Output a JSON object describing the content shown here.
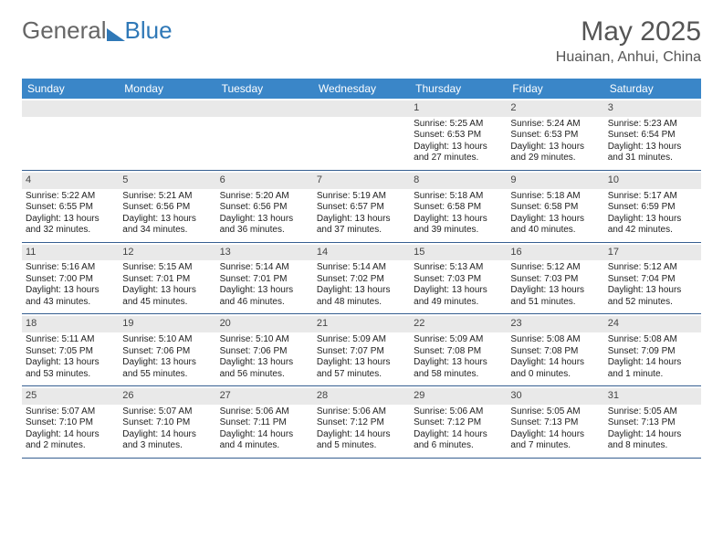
{
  "logo": {
    "word1": "General",
    "word2": "Blue"
  },
  "title": {
    "month": "May 2025",
    "location": "Huainan, Anhui, China"
  },
  "colors": {
    "header_bg": "#3a86c8",
    "header_text": "#ffffff",
    "accent": "#2f78b7",
    "daynum_bg": "#e9e9e9",
    "week_divider": "#365f91",
    "text": "#222222",
    "title_text": "#555555"
  },
  "calendar": {
    "days_of_week": [
      "Sunday",
      "Monday",
      "Tuesday",
      "Wednesday",
      "Thursday",
      "Friday",
      "Saturday"
    ],
    "weeks": [
      [
        {
          "n": "",
          "empty": true
        },
        {
          "n": "",
          "empty": true
        },
        {
          "n": "",
          "empty": true
        },
        {
          "n": "",
          "empty": true
        },
        {
          "n": "1",
          "sunrise": "5:25 AM",
          "sunset": "6:53 PM",
          "daylight": "13 hours and 27 minutes."
        },
        {
          "n": "2",
          "sunrise": "5:24 AM",
          "sunset": "6:53 PM",
          "daylight": "13 hours and 29 minutes."
        },
        {
          "n": "3",
          "sunrise": "5:23 AM",
          "sunset": "6:54 PM",
          "daylight": "13 hours and 31 minutes."
        }
      ],
      [
        {
          "n": "4",
          "sunrise": "5:22 AM",
          "sunset": "6:55 PM",
          "daylight": "13 hours and 32 minutes."
        },
        {
          "n": "5",
          "sunrise": "5:21 AM",
          "sunset": "6:56 PM",
          "daylight": "13 hours and 34 minutes."
        },
        {
          "n": "6",
          "sunrise": "5:20 AM",
          "sunset": "6:56 PM",
          "daylight": "13 hours and 36 minutes."
        },
        {
          "n": "7",
          "sunrise": "5:19 AM",
          "sunset": "6:57 PM",
          "daylight": "13 hours and 37 minutes."
        },
        {
          "n": "8",
          "sunrise": "5:18 AM",
          "sunset": "6:58 PM",
          "daylight": "13 hours and 39 minutes."
        },
        {
          "n": "9",
          "sunrise": "5:18 AM",
          "sunset": "6:58 PM",
          "daylight": "13 hours and 40 minutes."
        },
        {
          "n": "10",
          "sunrise": "5:17 AM",
          "sunset": "6:59 PM",
          "daylight": "13 hours and 42 minutes."
        }
      ],
      [
        {
          "n": "11",
          "sunrise": "5:16 AM",
          "sunset": "7:00 PM",
          "daylight": "13 hours and 43 minutes."
        },
        {
          "n": "12",
          "sunrise": "5:15 AM",
          "sunset": "7:01 PM",
          "daylight": "13 hours and 45 minutes."
        },
        {
          "n": "13",
          "sunrise": "5:14 AM",
          "sunset": "7:01 PM",
          "daylight": "13 hours and 46 minutes."
        },
        {
          "n": "14",
          "sunrise": "5:14 AM",
          "sunset": "7:02 PM",
          "daylight": "13 hours and 48 minutes."
        },
        {
          "n": "15",
          "sunrise": "5:13 AM",
          "sunset": "7:03 PM",
          "daylight": "13 hours and 49 minutes."
        },
        {
          "n": "16",
          "sunrise": "5:12 AM",
          "sunset": "7:03 PM",
          "daylight": "13 hours and 51 minutes."
        },
        {
          "n": "17",
          "sunrise": "5:12 AM",
          "sunset": "7:04 PM",
          "daylight": "13 hours and 52 minutes."
        }
      ],
      [
        {
          "n": "18",
          "sunrise": "5:11 AM",
          "sunset": "7:05 PM",
          "daylight": "13 hours and 53 minutes."
        },
        {
          "n": "19",
          "sunrise": "5:10 AM",
          "sunset": "7:06 PM",
          "daylight": "13 hours and 55 minutes."
        },
        {
          "n": "20",
          "sunrise": "5:10 AM",
          "sunset": "7:06 PM",
          "daylight": "13 hours and 56 minutes."
        },
        {
          "n": "21",
          "sunrise": "5:09 AM",
          "sunset": "7:07 PM",
          "daylight": "13 hours and 57 minutes."
        },
        {
          "n": "22",
          "sunrise": "5:09 AM",
          "sunset": "7:08 PM",
          "daylight": "13 hours and 58 minutes."
        },
        {
          "n": "23",
          "sunrise": "5:08 AM",
          "sunset": "7:08 PM",
          "daylight": "14 hours and 0 minutes."
        },
        {
          "n": "24",
          "sunrise": "5:08 AM",
          "sunset": "7:09 PM",
          "daylight": "14 hours and 1 minute."
        }
      ],
      [
        {
          "n": "25",
          "sunrise": "5:07 AM",
          "sunset": "7:10 PM",
          "daylight": "14 hours and 2 minutes."
        },
        {
          "n": "26",
          "sunrise": "5:07 AM",
          "sunset": "7:10 PM",
          "daylight": "14 hours and 3 minutes."
        },
        {
          "n": "27",
          "sunrise": "5:06 AM",
          "sunset": "7:11 PM",
          "daylight": "14 hours and 4 minutes."
        },
        {
          "n": "28",
          "sunrise": "5:06 AM",
          "sunset": "7:12 PM",
          "daylight": "14 hours and 5 minutes."
        },
        {
          "n": "29",
          "sunrise": "5:06 AM",
          "sunset": "7:12 PM",
          "daylight": "14 hours and 6 minutes."
        },
        {
          "n": "30",
          "sunrise": "5:05 AM",
          "sunset": "7:13 PM",
          "daylight": "14 hours and 7 minutes."
        },
        {
          "n": "31",
          "sunrise": "5:05 AM",
          "sunset": "7:13 PM",
          "daylight": "14 hours and 8 minutes."
        }
      ]
    ],
    "labels": {
      "sunrise": "Sunrise: ",
      "sunset": "Sunset: ",
      "daylight": "Daylight: "
    }
  }
}
